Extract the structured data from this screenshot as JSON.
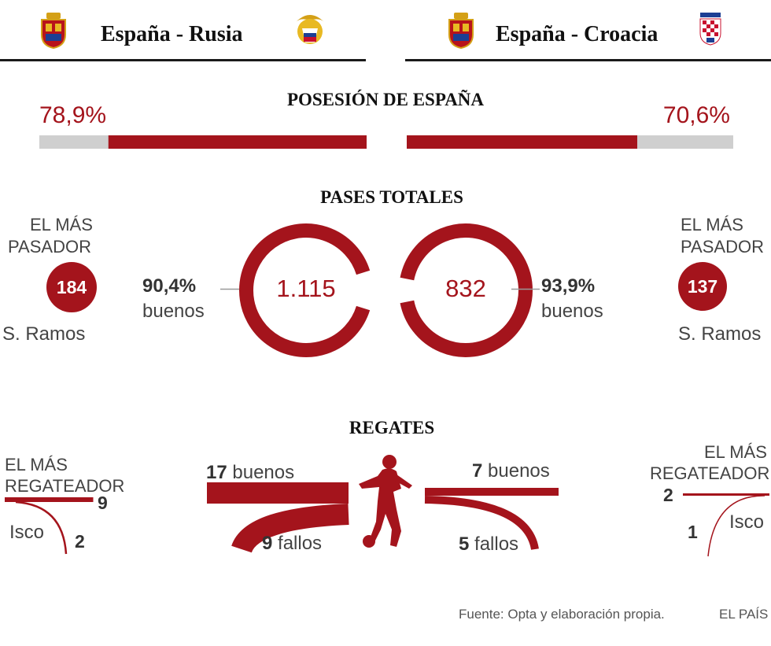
{
  "matches": [
    {
      "title": "España - Rusia",
      "home_crest": "spain-crest-icon",
      "away_crest": "russia-crest-icon"
    },
    {
      "title": "España - Croacia",
      "home_crest": "spain-crest-icon",
      "away_crest": "croatia-crest-icon"
    }
  ],
  "possession": {
    "title": "POSESIÓN DE ESPAÑA",
    "left_label": "78,9%",
    "right_label": "70,6%"
  },
  "passes": {
    "title": "PASES TOTALES",
    "left": {
      "top_passer_heading_1": "EL MÁS",
      "top_passer_heading_2": "PASADOR",
      "top_passer_value": "184",
      "top_passer_name": "S. Ramos",
      "total": "1.115",
      "accuracy": "90,4%",
      "accuracy_label": "buenos"
    },
    "right": {
      "top_passer_heading_1": "EL MÁS",
      "top_passer_heading_2": "PASADOR",
      "top_passer_value": "137",
      "top_passer_name": "S. Ramos",
      "total": "832",
      "accuracy": "93,9%",
      "accuracy_label": "buenos"
    }
  },
  "dribbles": {
    "title": "REGATES",
    "left": {
      "top_heading_1": "EL MÁS",
      "top_heading_2": "REGATEADOR",
      "top_name": "Isco",
      "top_good": "9",
      "top_bad": "2",
      "good_num": "17",
      "good_label": "buenos",
      "bad_num": "9",
      "bad_label": "fallos"
    },
    "right": {
      "top_heading_1": "EL MÁS",
      "top_heading_2": "REGATEADOR",
      "top_name": "Isco",
      "top_good": "2",
      "top_bad": "1",
      "good_num": "7",
      "good_label": "buenos",
      "bad_num": "5",
      "bad_label": "fallos"
    }
  },
  "footer": {
    "source": "Fuente: Opta y elaboración propia.",
    "brand": "EL PAÍS"
  },
  "colors": {
    "accent": "#a4141c",
    "track": "#cfcfcf",
    "text": "#333333"
  },
  "chart_data": [
    {
      "type": "bar",
      "title": "POSESIÓN DE ESPAÑA",
      "categories": [
        "España - Rusia",
        "España - Croacia"
      ],
      "unit": "%",
      "values": [
        78.9,
        70.6
      ]
    },
    {
      "type": "pie",
      "title": "PASES TOTALES",
      "matches": [
        {
          "match": "España - Rusia",
          "total": 1115,
          "accuracy_pct": 90.4,
          "top_passer": "S. Ramos",
          "top_passer_passes": 184
        },
        {
          "match": "España - Croacia",
          "total": 832,
          "accuracy_pct": 93.9,
          "top_passer": "S. Ramos",
          "top_passer_passes": 137
        }
      ]
    },
    {
      "type": "bar",
      "title": "REGATES",
      "matches": [
        {
          "match": "España - Rusia",
          "good": 17,
          "failed": 9,
          "top_dribbler": "Isco",
          "top_good": 9,
          "top_failed": 2
        },
        {
          "match": "España - Croacia",
          "good": 7,
          "failed": 5,
          "top_dribbler": "Isco",
          "top_good": 2,
          "top_failed": 1
        }
      ]
    }
  ]
}
